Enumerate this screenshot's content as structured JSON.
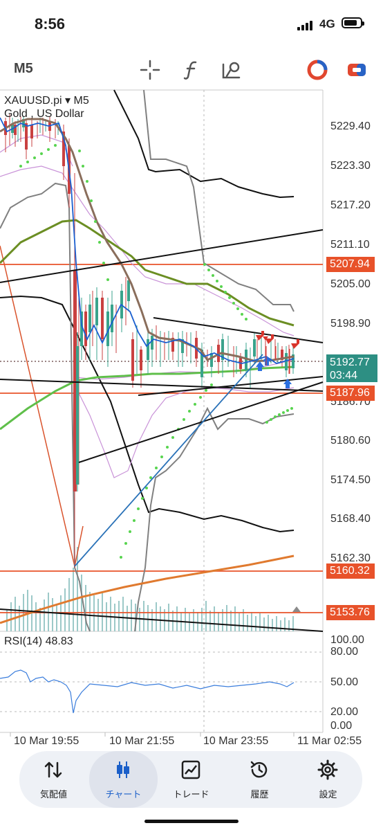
{
  "status_bar": {
    "time": "8:56",
    "network": "4G"
  },
  "toolbar": {
    "timeframe": "M5"
  },
  "chart": {
    "symbol": "XAUUSD.pi ▾ M5",
    "description": "Gold , US Dollar",
    "rsi_label": "RSI(14) 48.83",
    "price_ticks": [
      "5229.40",
      "5223.30",
      "5217.20",
      "5211.10",
      "5205.00",
      "5198.90",
      "5186.70",
      "5180.60",
      "5174.50",
      "5168.40",
      "5162.30",
      "5153.76"
    ],
    "level_tags": [
      {
        "value": "5207.94",
        "color": "#e8522a"
      },
      {
        "value": "5187.96",
        "color": "#e8522a"
      },
      {
        "value": "5160.32",
        "color": "#e8522a"
      },
      {
        "value": "5153.76",
        "color": "#e8522a"
      }
    ],
    "current_price": "5192.77",
    "countdown": "03:44",
    "rsi_ticks": [
      "100.00",
      "80.00",
      "50.00",
      "20.00",
      "0.00"
    ],
    "time_ticks": [
      "10 Mar 19:55",
      "10 Mar 21:55",
      "10 Mar 23:55",
      "11 Mar 02:55"
    ]
  },
  "tabs": [
    {
      "label": "気配値",
      "icon": "quotes-icon",
      "active": false
    },
    {
      "label": "チャート",
      "icon": "candlestick-icon",
      "active": true
    },
    {
      "label": "トレード",
      "icon": "trade-icon",
      "active": false
    },
    {
      "label": "履歴",
      "icon": "history-icon",
      "active": false
    },
    {
      "label": "設定",
      "icon": "settings-icon",
      "active": false
    }
  ],
  "colors": {
    "accent": "#1b5fc9",
    "level_line": "#e8522a",
    "price_tag": "#2d8f83"
  }
}
